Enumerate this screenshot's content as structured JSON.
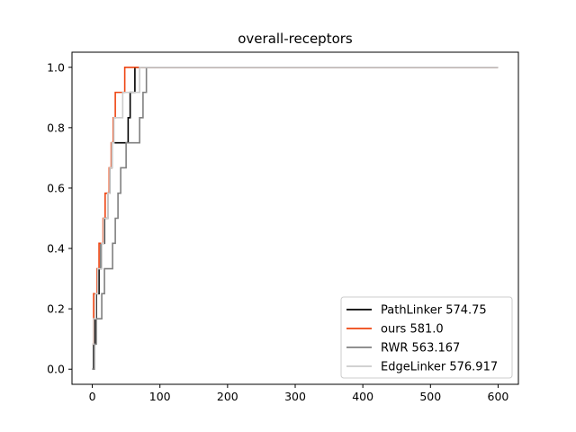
{
  "chart_data": {
    "type": "line",
    "title": "overall-receptors",
    "xlabel": "",
    "ylabel": "",
    "xlim": [
      -30,
      630
    ],
    "ylim": [
      -0.05,
      1.05
    ],
    "xticks": [
      0,
      100,
      200,
      300,
      400,
      500,
      600
    ],
    "yticks": [
      0.0,
      0.2,
      0.4,
      0.6,
      0.8,
      1.0
    ],
    "xtick_labels": [
      "0",
      "100",
      "200",
      "300",
      "400",
      "500",
      "600"
    ],
    "ytick_labels": [
      "0.0",
      "0.2",
      "0.4",
      "0.6",
      "0.8",
      "1.0"
    ],
    "grid": false,
    "legend_position": "lower-right",
    "series": [
      {
        "name": "PathLinker 574.75",
        "color": "#000000",
        "x": [
          0,
          2,
          4,
          6,
          8,
          10,
          13,
          16,
          18,
          20,
          23,
          26,
          29,
          32,
          35,
          38,
          41,
          44,
          47,
          50,
          53,
          56,
          60,
          63,
          66,
          600
        ],
        "y": [
          0.0,
          0.083,
          0.167,
          0.25,
          0.25,
          0.333,
          0.417,
          0.417,
          0.5,
          0.5,
          0.583,
          0.667,
          0.75,
          0.75,
          0.75,
          0.75,
          0.75,
          0.75,
          0.75,
          0.75,
          0.833,
          0.917,
          0.917,
          1.0,
          1.0,
          1.0
        ]
      },
      {
        "name": "ours 581.0",
        "color": "#ee4411",
        "x": [
          0,
          2,
          4,
          7,
          10,
          13,
          16,
          19,
          22,
          25,
          28,
          31,
          34,
          37,
          40,
          44,
          48,
          50,
          55,
          60,
          600
        ],
        "y": [
          0.083,
          0.25,
          0.25,
          0.333,
          0.417,
          0.417,
          0.5,
          0.583,
          0.583,
          0.667,
          0.75,
          0.833,
          0.917,
          0.917,
          0.917,
          0.917,
          1.0,
          1.0,
          1.0,
          1.0,
          1.0
        ]
      },
      {
        "name": "RWR 563.167",
        "color": "#808080",
        "x": [
          0,
          3,
          6,
          10,
          14,
          18,
          22,
          26,
          30,
          34,
          38,
          42,
          46,
          50,
          55,
          60,
          65,
          70,
          75,
          80,
          600
        ],
        "y": [
          0.0,
          0.083,
          0.167,
          0.167,
          0.25,
          0.333,
          0.333,
          0.333,
          0.417,
          0.5,
          0.583,
          0.667,
          0.667,
          0.75,
          0.75,
          0.75,
          0.75,
          0.833,
          0.917,
          1.0,
          1.0
        ]
      },
      {
        "name": "EdgeLinker 576.917",
        "color": "#cccccc",
        "x": [
          0,
          2,
          5,
          8,
          11,
          14,
          17,
          20,
          23,
          26,
          29,
          32,
          35,
          40,
          45,
          50,
          55,
          60,
          65,
          70,
          75,
          600
        ],
        "y": [
          0.083,
          0.167,
          0.25,
          0.333,
          0.333,
          0.417,
          0.5,
          0.5,
          0.583,
          0.667,
          0.75,
          0.833,
          0.833,
          0.833,
          0.917,
          0.917,
          0.917,
          0.917,
          0.917,
          1.0,
          1.0,
          1.0
        ]
      }
    ]
  }
}
